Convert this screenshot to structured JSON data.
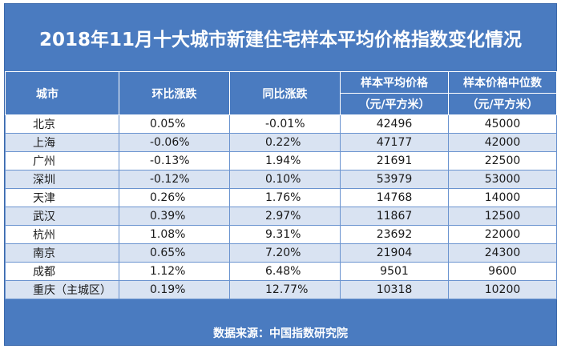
{
  "title": "2018年11月十大城市新建住宅样本平均价格指数变化情况",
  "headers": {
    "city": "城市",
    "mom": "环比涨跌",
    "yoy": "同比涨跌",
    "avg": "样本平均价格",
    "avg_unit": "（元/平方米）",
    "median": "样本价格中位数",
    "median_unit": "（元/平方米）"
  },
  "rows": [
    {
      "city": "北京",
      "mom": "0.05%",
      "yoy": "-0.01%",
      "avg": "42496",
      "median": "45000"
    },
    {
      "city": "上海",
      "mom": "-0.06%",
      "yoy": "0.22%",
      "avg": "47177",
      "median": "42000"
    },
    {
      "city": "广州",
      "mom": "-0.13%",
      "yoy": "1.94%",
      "avg": "21691",
      "median": "22500"
    },
    {
      "city": "深圳",
      "mom": "-0.12%",
      "yoy": "0.10%",
      "avg": "53979",
      "median": "53000"
    },
    {
      "city": "天津",
      "mom": "0.26%",
      "yoy": "1.76%",
      "avg": "14768",
      "median": "14000"
    },
    {
      "city": "武汉",
      "mom": "0.39%",
      "yoy": "2.97%",
      "avg": "11867",
      "median": "12500"
    },
    {
      "city": "杭州",
      "mom": "1.08%",
      "yoy": "9.31%",
      "avg": "23692",
      "median": "22000"
    },
    {
      "city": "南京",
      "mom": "0.65%",
      "yoy": "7.20%",
      "avg": "21904",
      "median": "24300"
    },
    {
      "city": "成都",
      "mom": "1.12%",
      "yoy": "6.48%",
      "avg": "9501",
      "median": "9600"
    },
    {
      "city": "重庆（主城区）",
      "mom": "0.19%",
      "yoy": "12.77%",
      "avg": "10318",
      "median": "10200"
    }
  ],
  "footer": "数据来源：中国指数研究院"
}
